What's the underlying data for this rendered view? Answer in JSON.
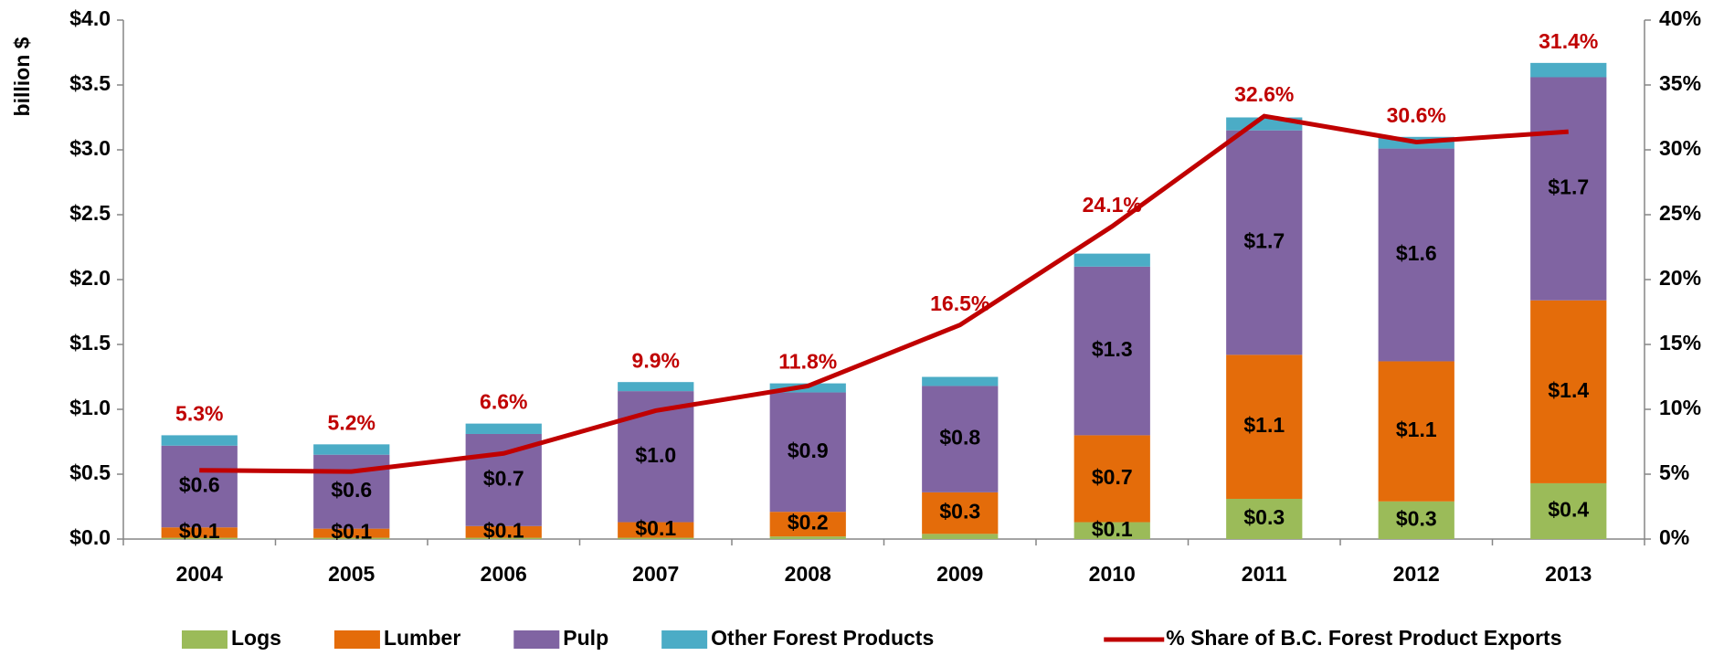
{
  "chart_data": {
    "type": "bar",
    "stacked": true,
    "ylabel": "billion $",
    "categories": [
      "2004",
      "2005",
      "2006",
      "2007",
      "2008",
      "2009",
      "2010",
      "2011",
      "2012",
      "2013"
    ],
    "series": [
      {
        "name": "Logs",
        "color": "#9bbb59",
        "values": [
          0.01,
          0.01,
          0.01,
          0.01,
          0.02,
          0.04,
          0.13,
          0.31,
          0.29,
          0.43
        ],
        "value_labels": [
          null,
          null,
          null,
          null,
          null,
          null,
          "$0.1",
          "$0.3",
          "$0.3",
          "$0.4"
        ]
      },
      {
        "name": "Lumber",
        "color": "#e46c0a",
        "values": [
          0.08,
          0.07,
          0.09,
          0.12,
          0.19,
          0.32,
          0.67,
          1.11,
          1.08,
          1.41
        ],
        "value_labels": [
          "$0.1",
          "$0.1",
          "$0.1",
          "$0.1",
          "$0.2",
          "$0.3",
          "$0.7",
          "$1.1",
          "$1.1",
          "$1.4"
        ]
      },
      {
        "name": "Pulp",
        "color": "#8064a2",
        "values": [
          0.63,
          0.57,
          0.71,
          1.01,
          0.92,
          0.82,
          1.3,
          1.73,
          1.64,
          1.72
        ],
        "value_labels": [
          "$0.6",
          "$0.6",
          "$0.7",
          "$1.0",
          "$0.9",
          "$0.8",
          "$1.3",
          "$1.7",
          "$1.6",
          "$1.7"
        ]
      },
      {
        "name": "Other Forest Products",
        "color": "#4bacc6",
        "values": [
          0.08,
          0.08,
          0.08,
          0.07,
          0.07,
          0.07,
          0.1,
          0.1,
          0.09,
          0.11
        ]
      },
      {
        "name": "% Share of B.C. Forest Product Exports",
        "type": "line",
        "axis": "y2",
        "color": "#c00000",
        "values": [
          5.3,
          5.2,
          6.6,
          9.9,
          11.8,
          16.5,
          24.1,
          32.6,
          30.6,
          31.4
        ],
        "value_labels": [
          "5.3%",
          "5.2%",
          "6.6%",
          "9.9%",
          "11.8%",
          "16.5%",
          "24.1%",
          "32.6%",
          "30.6%",
          "31.4%"
        ]
      }
    ],
    "ylim": [
      0,
      4.0
    ],
    "yticks": [
      {
        "value": 0,
        "label": "$0.0"
      },
      {
        "value": 0.5,
        "label": "$0.5"
      },
      {
        "value": 1.0,
        "label": "$1.0"
      },
      {
        "value": 1.5,
        "label": "$1.5"
      },
      {
        "value": 2.0,
        "label": "$2.0"
      },
      {
        "value": 2.5,
        "label": "$2.5"
      },
      {
        "value": 3.0,
        "label": "$3.0"
      },
      {
        "value": 3.5,
        "label": "$3.5"
      },
      {
        "value": 4.0,
        "label": "$4.0"
      }
    ],
    "y2lim": [
      0,
      40
    ],
    "y2ticks": [
      {
        "value": 0,
        "label": "0%"
      },
      {
        "value": 5,
        "label": "5%"
      },
      {
        "value": 10,
        "label": "10%"
      },
      {
        "value": 15,
        "label": "15%"
      },
      {
        "value": 20,
        "label": "20%"
      },
      {
        "value": 25,
        "label": "25%"
      },
      {
        "value": 30,
        "label": "30%"
      },
      {
        "value": 35,
        "label": "35%"
      },
      {
        "value": 40,
        "label": "40%"
      }
    ],
    "grid": false,
    "legend": "bottom"
  }
}
